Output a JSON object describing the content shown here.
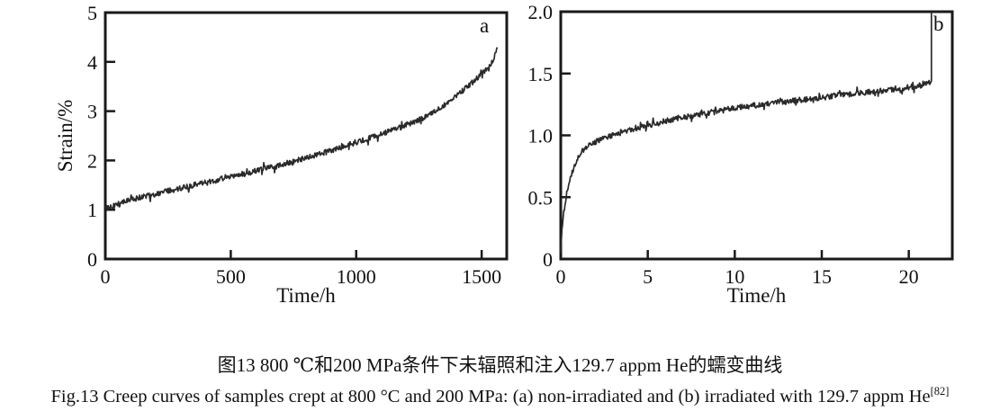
{
  "figure": {
    "caption_zh": "图13  800 ℃和200 MPa条件下未辐照和注入129.7 appm He的蠕变曲线",
    "caption_en_main": "Fig.13  Creep curves of samples crept at 800 °C and 200 MPa: (a) non-irradiated and (b) irradiated with 129.7 appm He",
    "caption_en_ref": "[82]"
  },
  "colors": {
    "curve": "#2a2a2a",
    "axis": "#1a1a1a",
    "text": "#111111",
    "background": "#ffffff"
  },
  "chart_data": [
    {
      "type": "line",
      "panel_label": "a",
      "xlabel": "Time/h",
      "ylabel": "Strain/%",
      "xlim": [
        0,
        1600
      ],
      "ylim": [
        0,
        5
      ],
      "xticks": [
        0,
        500,
        1000,
        1500
      ],
      "yticks": [
        0,
        1,
        2,
        3,
        4,
        5
      ],
      "xticklabels": [
        "0",
        "500",
        "1000",
        "1500"
      ],
      "yticklabels": [
        "0",
        "1",
        "2",
        "3",
        "4",
        "5"
      ],
      "grid": false,
      "legend": false,
      "noise_amplitude": 0.055,
      "series": [
        {
          "name": "non-irradiated creep curve",
          "points": [
            [
              0,
              1.02
            ],
            [
              60,
              1.14
            ],
            [
              150,
              1.26
            ],
            [
              250,
              1.38
            ],
            [
              350,
              1.5
            ],
            [
              450,
              1.6
            ],
            [
              550,
              1.72
            ],
            [
              650,
              1.85
            ],
            [
              750,
              1.98
            ],
            [
              850,
              2.12
            ],
            [
              950,
              2.28
            ],
            [
              1050,
              2.45
            ],
            [
              1150,
              2.62
            ],
            [
              1250,
              2.82
            ],
            [
              1320,
              3.0
            ],
            [
              1390,
              3.28
            ],
            [
              1450,
              3.52
            ],
            [
              1495,
              3.73
            ],
            [
              1525,
              3.9
            ],
            [
              1548,
              4.05
            ],
            [
              1562,
              4.32
            ]
          ]
        }
      ]
    },
    {
      "type": "line",
      "panel_label": "b",
      "xlabel": "Time/h",
      "ylabel": "",
      "xlim": [
        0,
        22.5
      ],
      "ylim": [
        0,
        2
      ],
      "xticks": [
        0,
        5,
        10,
        15,
        20
      ],
      "yticks": [
        0,
        0.5,
        1.0,
        1.5,
        2.0
      ],
      "xticklabels": [
        "0",
        "5",
        "10",
        "15",
        "20"
      ],
      "yticklabels": [
        "0",
        "0.5",
        "1.0",
        "1.5",
        "2.0"
      ],
      "grid": false,
      "legend": false,
      "noise_amplitude": 0.022,
      "series": [
        {
          "name": "irradiated with 129.7 appm He creep curve",
          "points": [
            [
              0,
              0.05
            ],
            [
              0.08,
              0.25
            ],
            [
              0.18,
              0.38
            ],
            [
              0.3,
              0.5
            ],
            [
              0.45,
              0.6
            ],
            [
              0.65,
              0.7
            ],
            [
              0.9,
              0.79
            ],
            [
              1.2,
              0.87
            ],
            [
              1.6,
              0.92
            ],
            [
              2.2,
              0.96
            ],
            [
              3,
              1.0
            ],
            [
              4,
              1.045
            ],
            [
              5,
              1.08
            ],
            [
              6,
              1.115
            ],
            [
              7,
              1.145
            ],
            [
              8,
              1.17
            ],
            [
              9,
              1.195
            ],
            [
              10,
              1.22
            ],
            [
              11,
              1.24
            ],
            [
              12,
              1.26
            ],
            [
              13,
              1.275
            ],
            [
              14,
              1.29
            ],
            [
              15,
              1.305
            ],
            [
              16,
              1.325
            ],
            [
              17,
              1.34
            ],
            [
              18,
              1.355
            ],
            [
              19,
              1.37
            ],
            [
              20,
              1.39
            ],
            [
              20.7,
              1.405
            ],
            [
              21.2,
              1.43
            ]
          ]
        }
      ],
      "rupture_line": {
        "time": 21.3,
        "strain_from": 1.44,
        "strain_to": 2.0
      }
    }
  ]
}
